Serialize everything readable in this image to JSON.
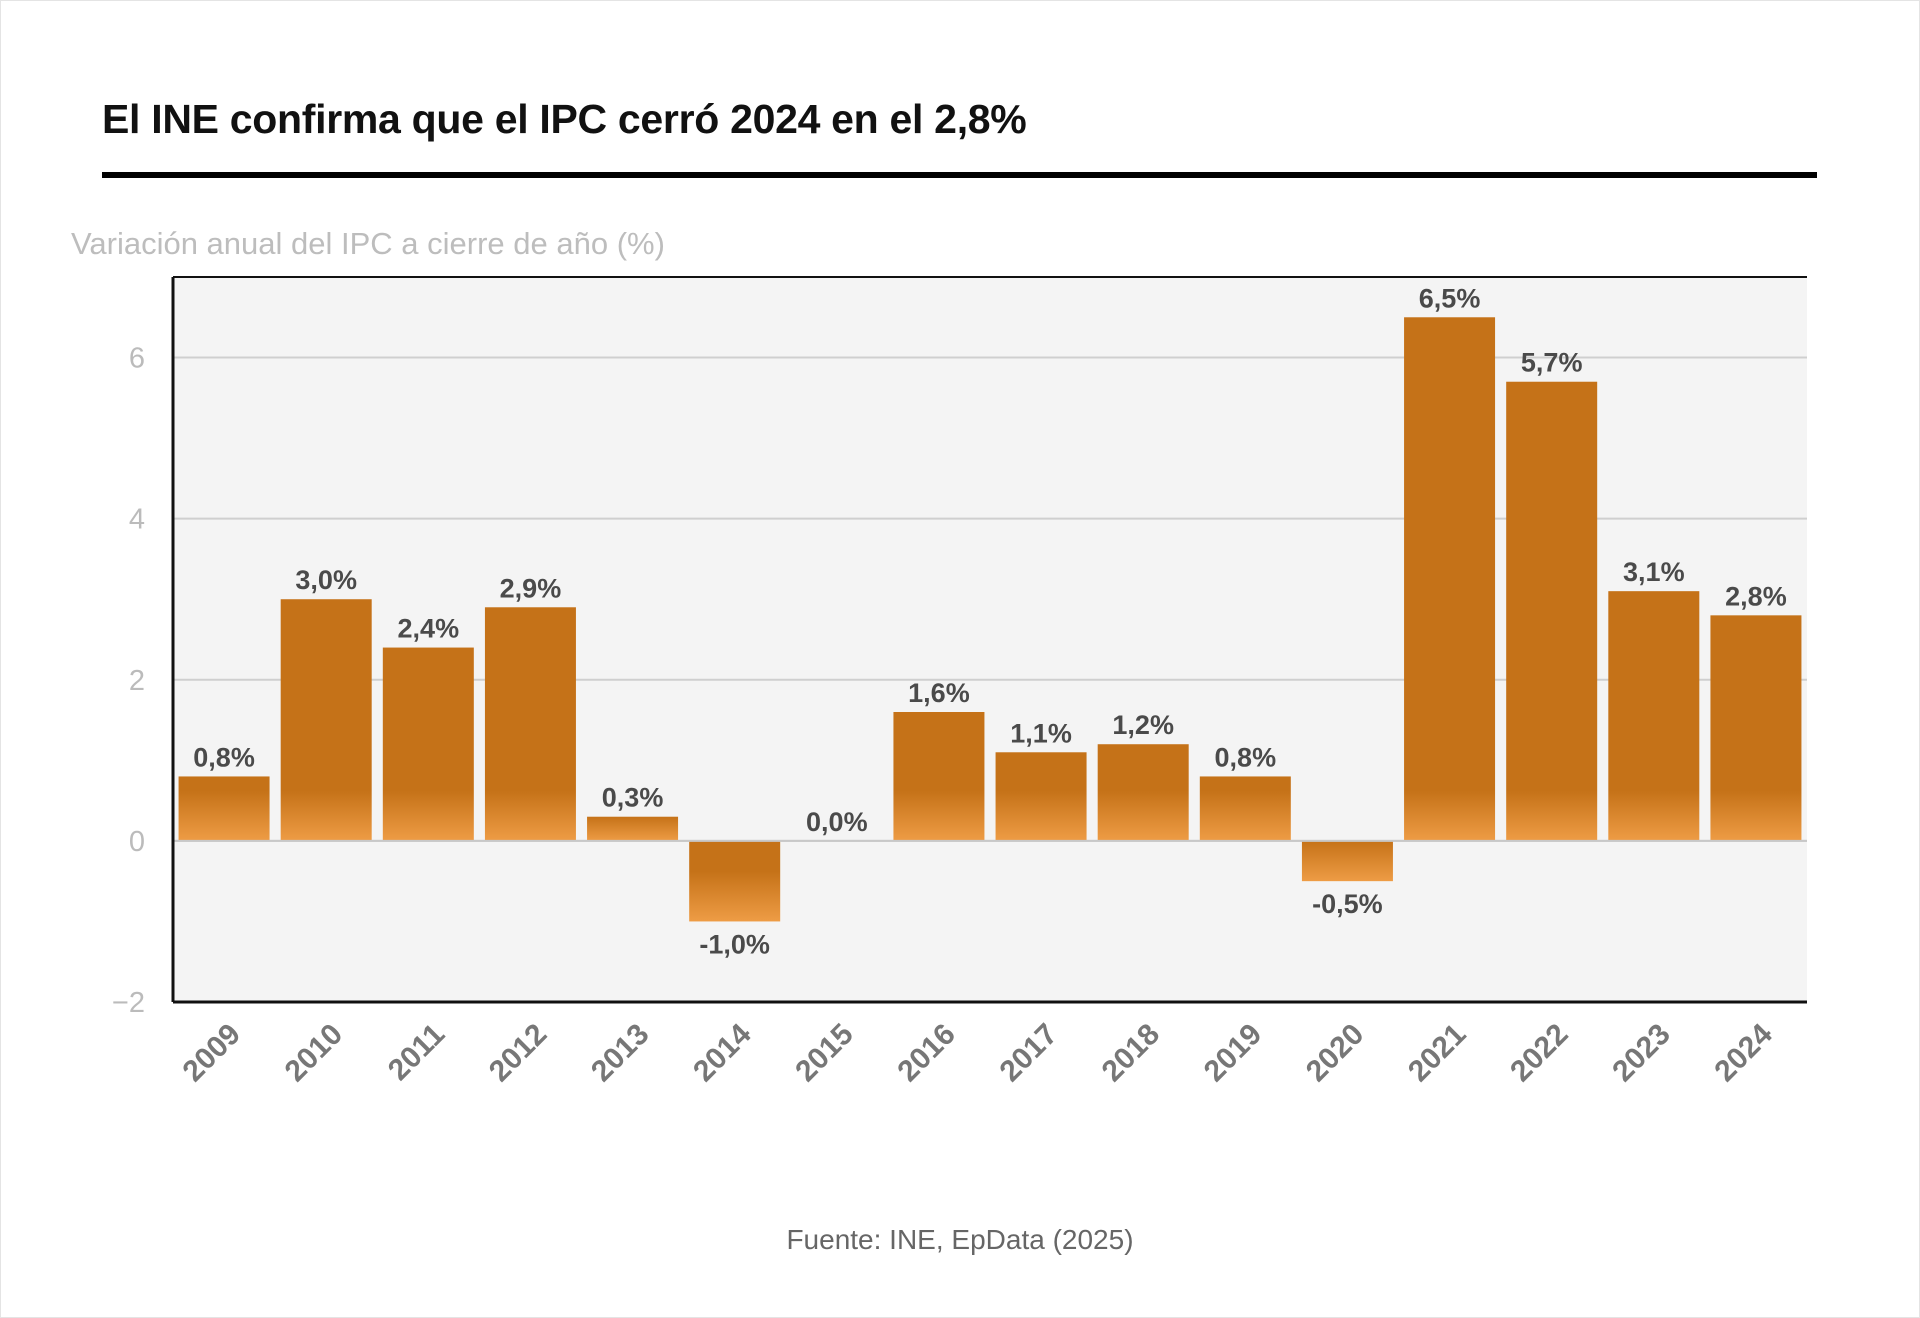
{
  "title": "El INE confirma que el IPC cerró 2024 en el 2,8%",
  "source": "Fuente: INE, EpData (2025)",
  "colors": {
    "bar": "#c57218",
    "bar_light": "#ee9c45",
    "plot_bg": "#f4f4f4",
    "label": "#4a4a4a",
    "tick": "#777777"
  },
  "chart_data": {
    "type": "bar",
    "title": "El INE confirma que el IPC cerró 2024 en el 2,8%",
    "subtitle": "Variación anual del IPC a cierre de año (%)",
    "xlabel": "",
    "ylabel": "Variación anual del IPC a cierre de año (%)",
    "categories": [
      "2009",
      "2010",
      "2011",
      "2012",
      "2013",
      "2014",
      "2015",
      "2016",
      "2017",
      "2018",
      "2019",
      "2020",
      "2021",
      "2022",
      "2023",
      "2024"
    ],
    "values": [
      0.8,
      3.0,
      2.4,
      2.9,
      0.3,
      -1.0,
      0.0,
      1.6,
      1.1,
      1.2,
      0.8,
      -0.5,
      6.5,
      5.7,
      3.1,
      2.8
    ],
    "data_labels": [
      "0,8%",
      "3,0%",
      "2,4%",
      "2,9%",
      "0,3%",
      "-1,0%",
      "0,0%",
      "1,6%",
      "1,1%",
      "1,2%",
      "0,8%",
      "-0,5%",
      "6,5%",
      "5,7%",
      "3,1%",
      "2,8%"
    ],
    "ylim": [
      -2,
      7
    ],
    "yticks": [
      -2,
      0,
      2,
      4,
      6
    ],
    "ytick_labels": [
      "−2",
      "0",
      "2",
      "4",
      "6"
    ],
    "grid": true,
    "legend": "none"
  }
}
